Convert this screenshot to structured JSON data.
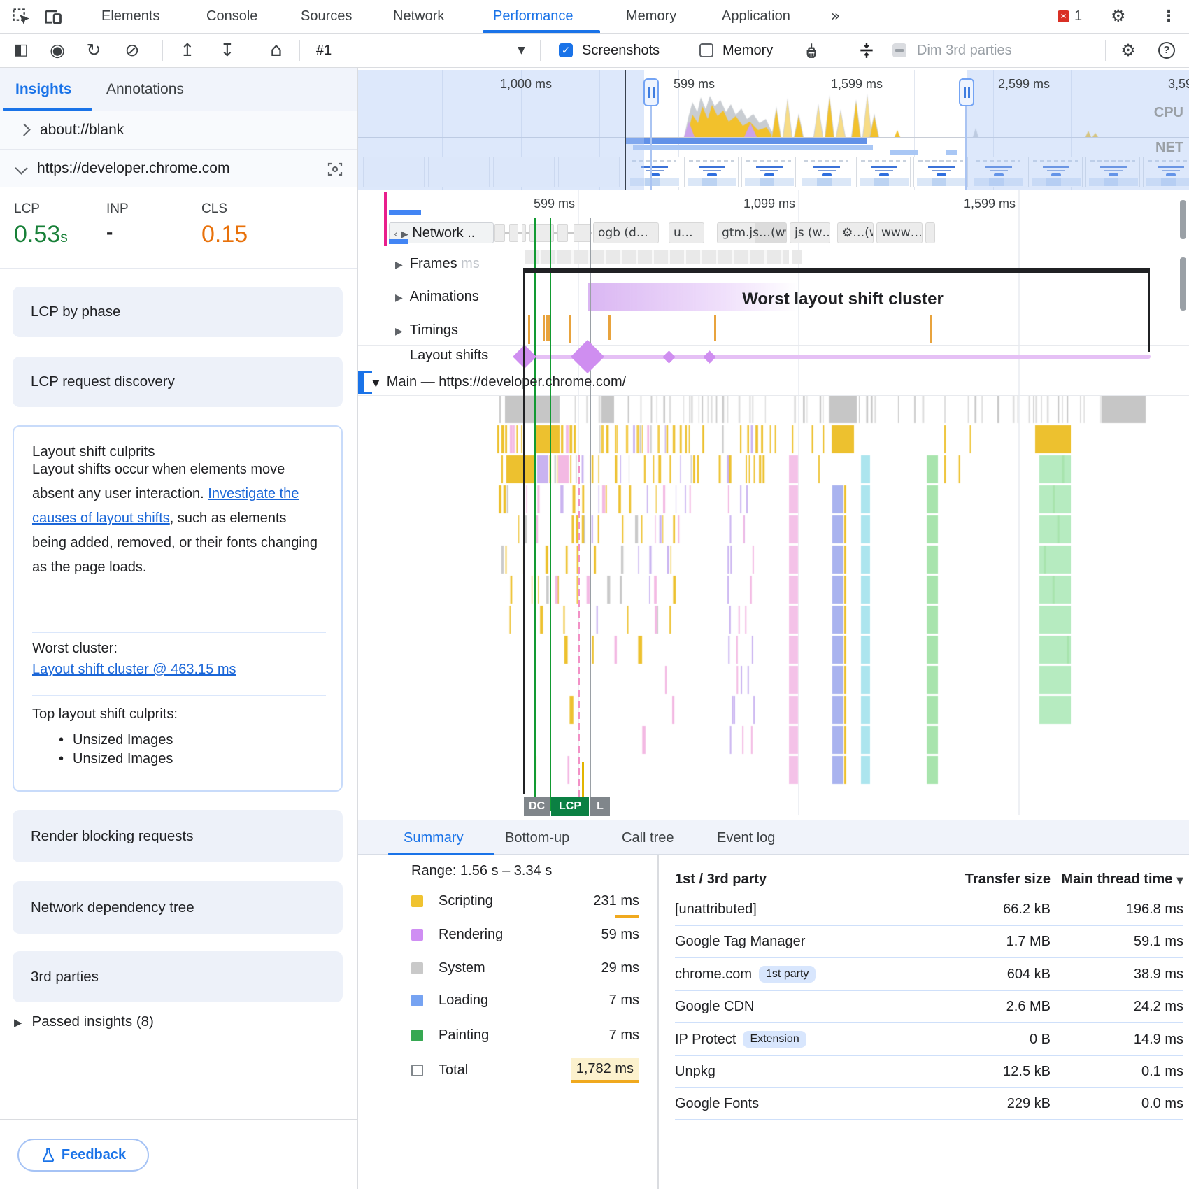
{
  "devtools": {
    "tabs": [
      "Elements",
      "Console",
      "Sources",
      "Network",
      "Performance",
      "Memory",
      "Application"
    ],
    "more_tabs_icon": "»",
    "error_count": "1"
  },
  "toolbar": {
    "recording_label": "#1",
    "screenshots_label": "Screenshots",
    "memory_label": "Memory",
    "dim_label": "Dim 3rd parties"
  },
  "sidebar": {
    "tabs": {
      "insights": "Insights",
      "annotations": "Annotations"
    },
    "origin_blank": "about://blank",
    "origin_main": "https://developer.chrome.com",
    "metrics": [
      {
        "label": "LCP",
        "value": "0.53",
        "unit": "s",
        "color": "#188038"
      },
      {
        "label": "INP",
        "value": "-",
        "color": "#202124"
      },
      {
        "label": "CLS",
        "value": "0.15",
        "color": "#e8710a"
      }
    ],
    "cards": {
      "lcp_phase": "LCP by phase",
      "lcp_discovery": "LCP request discovery",
      "render_blocking": "Render blocking requests",
      "network_tree": "Network dependency tree",
      "third_parties": "3rd parties"
    },
    "culprits": {
      "title": "Layout shift culprits",
      "body_1": "Layout shifts occur when elements move absent any user interaction. ",
      "link": "Investigate the causes of layout shifts",
      "body_2": ", such as elements being added, removed, or their fonts changing as the page loads.",
      "worst_label": "Worst cluster:",
      "worst_link": "Layout shift cluster @ 463.15 ms",
      "top_label": "Top layout shift culprits:",
      "items": [
        "Unsized Images",
        "Unsized Images"
      ]
    },
    "passed_insights": "Passed insights (8)",
    "feedback": "Feedback"
  },
  "overview": {
    "ruler": [
      "1,000 ms",
      "599 ms",
      "1,599 ms",
      "2,599 ms",
      "3,59"
    ],
    "cpu_label": "CPU",
    "net_label": "NET"
  },
  "timeline": {
    "ruler": [
      "599 ms",
      "1,099 ms",
      "1,599 ms"
    ],
    "tracks": {
      "network": "Network ..",
      "frames": "Frames",
      "frames_ghost": "ms",
      "animations": "Animations",
      "timings": "Timings",
      "layout_shifts": "Layout shifts",
      "main": "Main — https://developer.chrome.com/"
    },
    "chips": [
      "ogb (d…",
      "u…",
      "gtm.js…(ww",
      "js (w…",
      "⚙…(w",
      "www…"
    ],
    "annotation": "Worst layout shift cluster",
    "markers": [
      "DC",
      "LCP",
      "L"
    ]
  },
  "bottom": {
    "tabs": [
      "Summary",
      "Bottom-up",
      "Call tree",
      "Event log"
    ],
    "range": "Range: 1.56 s – 3.34 s",
    "legend": [
      {
        "label": "Scripting",
        "value": "231 ms",
        "color": "#f0c330"
      },
      {
        "label": "Rendering",
        "value": "59 ms",
        "color": "#cf8ef3"
      },
      {
        "label": "System",
        "value": "29 ms",
        "color": "#c9c9c9"
      },
      {
        "label": "Loading",
        "value": "7 ms",
        "color": "#76a3f2"
      },
      {
        "label": "Painting",
        "value": "7 ms",
        "color": "#36a852"
      },
      {
        "label": "Total",
        "value": "1,782 ms",
        "color": "#ffffff"
      }
    ],
    "table": {
      "headers": [
        "1st / 3rd party",
        "Transfer size",
        "Main thread time"
      ],
      "rows": [
        {
          "name": "[unattributed]",
          "size": "66.2 kB",
          "time": "196.8 ms"
        },
        {
          "name": "Google Tag Manager",
          "size": "1.7 MB",
          "time": "59.1 ms"
        },
        {
          "name": "chrome.com",
          "badge": "1st party",
          "size": "604 kB",
          "time": "38.9 ms"
        },
        {
          "name": "Google CDN",
          "size": "2.6 MB",
          "time": "24.2 ms"
        },
        {
          "name": "IP Protect",
          "badge": "Extension",
          "size": "0 B",
          "time": "14.9 ms"
        },
        {
          "name": "Unpkg",
          "size": "12.5 kB",
          "time": "0.1 ms"
        },
        {
          "name": "Google Fonts",
          "size": "229 kB",
          "time": "0.0 ms"
        }
      ]
    }
  }
}
